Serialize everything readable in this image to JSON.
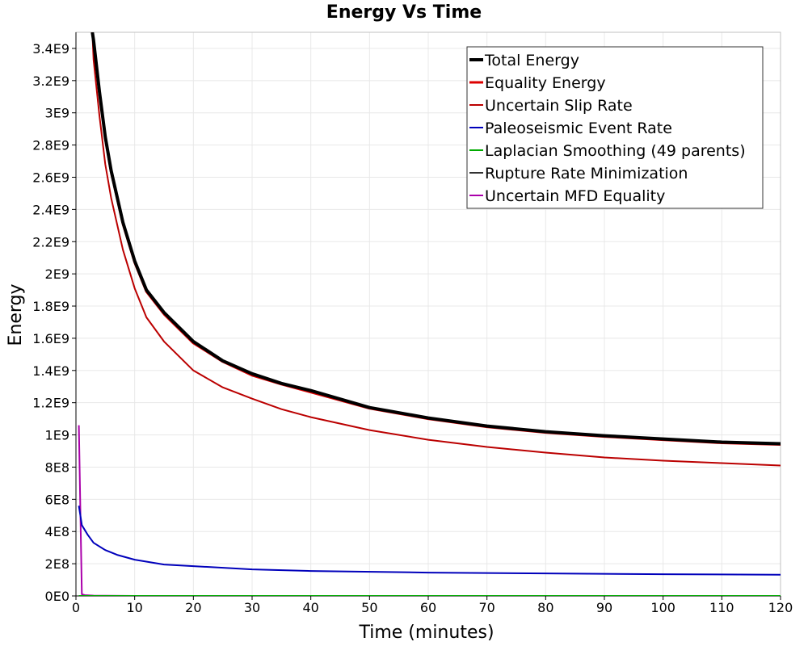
{
  "chart_data": {
    "type": "line",
    "title": "Energy Vs Time",
    "xlabel": "Time (minutes)",
    "ylabel": "Energy",
    "xlim": [
      0,
      120
    ],
    "ylim": [
      0,
      3500000000
    ],
    "x_ticks": [
      0,
      10,
      20,
      30,
      40,
      50,
      60,
      70,
      80,
      90,
      100,
      110,
      120
    ],
    "x_tick_labels": [
      "0",
      "10",
      "20",
      "30",
      "40",
      "50",
      "60",
      "70",
      "80",
      "90",
      "100",
      "110",
      "120"
    ],
    "y_ticks": [
      0,
      200000000,
      400000000,
      600000000,
      800000000,
      1000000000,
      1200000000,
      1400000000,
      1600000000,
      1800000000,
      2000000000,
      2200000000,
      2400000000,
      2600000000,
      2800000000,
      3000000000,
      3200000000,
      3400000000
    ],
    "y_tick_labels": [
      "0E0",
      "2E8",
      "4E8",
      "6E8",
      "8E8",
      "1E9",
      "1.2E9",
      "1.4E9",
      "1.6E9",
      "1.8E9",
      "2E9",
      "2.2E9",
      "2.4E9",
      "2.6E9",
      "2.8E9",
      "3E9",
      "3.2E9",
      "3.4E9"
    ],
    "grid": true,
    "legend_position": "top-right",
    "series": [
      {
        "name": "Total Energy",
        "color": "#000000",
        "width": 4,
        "x": [
          2.8,
          3,
          4,
          5,
          6,
          8,
          10,
          12,
          15,
          20,
          25,
          30,
          35,
          40,
          50,
          60,
          70,
          80,
          90,
          100,
          110,
          120
        ],
        "y": [
          3500000000,
          3450000000,
          3130000000,
          2850000000,
          2640000000,
          2320000000,
          2080000000,
          1900000000,
          1760000000,
          1580000000,
          1460000000,
          1380000000,
          1320000000,
          1275000000,
          1170000000,
          1105000000,
          1055000000,
          1020000000,
          995000000,
          975000000,
          955000000,
          945000000
        ]
      },
      {
        "name": "Equality Energy",
        "color": "#dd0000",
        "width": 3,
        "x": [
          2.8,
          3,
          4,
          5,
          6,
          8,
          10,
          12,
          15,
          20,
          25,
          30,
          35,
          40,
          50,
          60,
          70,
          80,
          90,
          100,
          110,
          120
        ],
        "y": [
          3500000000,
          3440000000,
          3120000000,
          2840000000,
          2630000000,
          2310000000,
          2070000000,
          1890000000,
          1750000000,
          1570000000,
          1455000000,
          1370000000,
          1315000000,
          1265000000,
          1165000000,
          1100000000,
          1050000000,
          1015000000,
          990000000,
          970000000,
          950000000,
          940000000
        ]
      },
      {
        "name": "Uncertain Slip Rate",
        "color": "#bb0000",
        "width": 2,
        "x": [
          2.8,
          3,
          4,
          5,
          6,
          8,
          10,
          12,
          15,
          20,
          25,
          30,
          35,
          40,
          50,
          60,
          70,
          80,
          90,
          100,
          110,
          120
        ],
        "y": [
          3500000000,
          3330000000,
          2980000000,
          2680000000,
          2470000000,
          2150000000,
          1910000000,
          1730000000,
          1580000000,
          1400000000,
          1295000000,
          1225000000,
          1160000000,
          1110000000,
          1030000000,
          970000000,
          925000000,
          890000000,
          860000000,
          840000000,
          825000000,
          810000000
        ]
      },
      {
        "name": "Paleoseismic Event Rate",
        "color": "#0000bb",
        "width": 2,
        "x": [
          0.5,
          1,
          2,
          3,
          5,
          7,
          10,
          15,
          20,
          30,
          40,
          60,
          80,
          100,
          120
        ],
        "y": [
          560000000,
          440000000,
          380000000,
          330000000,
          285000000,
          255000000,
          225000000,
          195000000,
          185000000,
          165000000,
          155000000,
          145000000,
          140000000,
          135000000,
          132000000
        ]
      },
      {
        "name": "Laplacian Smoothing (49 parents)",
        "color": "#00aa00",
        "width": 2,
        "x": [
          0.5,
          120
        ],
        "y": [
          0,
          0
        ]
      },
      {
        "name": "Rupture Rate Minimization",
        "color": "#333333",
        "width": 2,
        "x": [
          0.5,
          120
        ],
        "y": [
          0,
          0
        ]
      },
      {
        "name": "Uncertain MFD Equality",
        "color": "#aa00aa",
        "width": 2,
        "x": [
          0.5,
          1,
          1.5,
          3,
          5,
          10,
          120
        ],
        "y": [
          1060000000,
          10000000,
          5000000,
          2000000,
          1000000,
          0,
          0
        ]
      }
    ]
  }
}
